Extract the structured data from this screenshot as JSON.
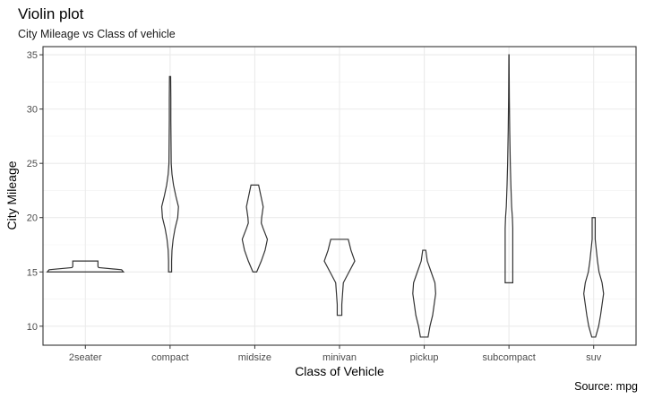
{
  "chart_data": {
    "type": "violin",
    "title": "Violin plot",
    "subtitle": "City Mileage vs Class of vehicle",
    "xlabel": "Class of Vehicle",
    "ylabel": "City Mileage",
    "caption": "Source: mpg",
    "categories": [
      "2seater",
      "compact",
      "midsize",
      "minivan",
      "pickup",
      "subcompact",
      "suv"
    ],
    "yticks": [
      10,
      15,
      20,
      25,
      30,
      35
    ],
    "ylim": [
      8.25,
      35.75
    ],
    "grid": true,
    "series": [
      {
        "category": "2seater",
        "min": 15,
        "max": 16,
        "profile": [
          [
            15,
            1
          ],
          [
            15.2,
            0.95
          ],
          [
            15.4,
            0.35
          ],
          [
            15.5,
            0.33
          ],
          [
            15.6,
            0.33
          ],
          [
            15.8,
            0.33
          ],
          [
            16,
            0.33
          ]
        ]
      },
      {
        "category": "compact",
        "min": 15,
        "max": 33,
        "profile": [
          [
            15,
            0.04
          ],
          [
            16,
            0.04
          ],
          [
            17,
            0.05
          ],
          [
            18,
            0.08
          ],
          [
            19,
            0.13
          ],
          [
            20,
            0.2
          ],
          [
            21,
            0.22
          ],
          [
            22,
            0.15
          ],
          [
            23,
            0.09
          ],
          [
            24,
            0.05
          ],
          [
            25,
            0.03
          ],
          [
            27,
            0.025
          ],
          [
            29,
            0.02
          ],
          [
            31,
            0.02
          ],
          [
            33,
            0.015
          ]
        ]
      },
      {
        "category": "midsize",
        "min": 15,
        "max": 23,
        "profile": [
          [
            15,
            0.05
          ],
          [
            16,
            0.17
          ],
          [
            17,
            0.27
          ],
          [
            18,
            0.33
          ],
          [
            19,
            0.22
          ],
          [
            19.5,
            0.17
          ],
          [
            20,
            0.18
          ],
          [
            21,
            0.22
          ],
          [
            22,
            0.16
          ],
          [
            23,
            0.1
          ]
        ]
      },
      {
        "category": "minivan",
        "min": 11,
        "max": 18,
        "profile": [
          [
            11,
            0.06
          ],
          [
            12,
            0.06
          ],
          [
            13,
            0.08
          ],
          [
            14,
            0.1
          ],
          [
            15,
            0.25
          ],
          [
            16,
            0.4
          ],
          [
            17,
            0.3
          ],
          [
            18,
            0.23
          ]
        ]
      },
      {
        "category": "pickup",
        "min": 9,
        "max": 17,
        "profile": [
          [
            9,
            0.1
          ],
          [
            10,
            0.15
          ],
          [
            11,
            0.22
          ],
          [
            12,
            0.26
          ],
          [
            13,
            0.3
          ],
          [
            14,
            0.28
          ],
          [
            15,
            0.18
          ],
          [
            16,
            0.08
          ],
          [
            17,
            0.04
          ]
        ]
      },
      {
        "category": "subcompact",
        "min": 14,
        "max": 35,
        "profile": [
          [
            14,
            0.1
          ],
          [
            15,
            0.1
          ],
          [
            16,
            0.1
          ],
          [
            17,
            0.1
          ],
          [
            18,
            0.1
          ],
          [
            19,
            0.1
          ],
          [
            20,
            0.09
          ],
          [
            21,
            0.07
          ],
          [
            23,
            0.05
          ],
          [
            25,
            0.035
          ],
          [
            28,
            0.02
          ],
          [
            31,
            0.01
          ],
          [
            33,
            0.006
          ],
          [
            35,
            0.003
          ]
        ]
      },
      {
        "category": "suv",
        "min": 9,
        "max": 20,
        "profile": [
          [
            9,
            0.05
          ],
          [
            10,
            0.13
          ],
          [
            11,
            0.18
          ],
          [
            12,
            0.22
          ],
          [
            13,
            0.26
          ],
          [
            14,
            0.22
          ],
          [
            15,
            0.14
          ],
          [
            16,
            0.1
          ],
          [
            17,
            0.07
          ],
          [
            18,
            0.04
          ],
          [
            20,
            0.04
          ]
        ]
      }
    ]
  }
}
